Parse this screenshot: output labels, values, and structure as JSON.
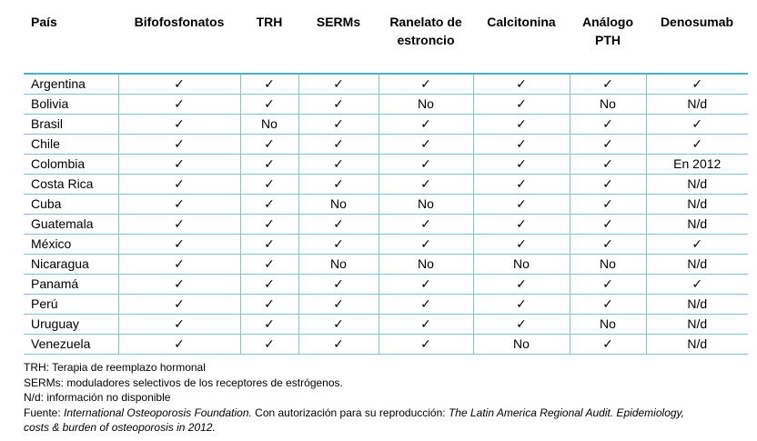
{
  "table": {
    "headers": [
      "País",
      "Bifofosfonatos",
      "TRH",
      "SERMs",
      "Ranelato de estroncio",
      "Calcitonina",
      "Análogo PTH",
      "Denosumab"
    ],
    "rows": [
      [
        "Argentina",
        "✓",
        "✓",
        "✓",
        "✓",
        "✓",
        "✓",
        "✓"
      ],
      [
        "Bolivia",
        "✓",
        "✓",
        "✓",
        "No",
        "✓",
        "No",
        "N/d"
      ],
      [
        "Brasil",
        "✓",
        "No",
        "✓",
        "✓",
        "✓",
        "✓",
        "✓"
      ],
      [
        "Chile",
        "✓",
        "✓",
        "✓",
        "✓",
        "✓",
        "✓",
        "✓"
      ],
      [
        "Colombia",
        "✓",
        "✓",
        "✓",
        "✓",
        "✓",
        "✓",
        "En 2012"
      ],
      [
        "Costa Rica",
        "✓",
        "✓",
        "✓",
        "✓",
        "✓",
        "✓",
        "N/d"
      ],
      [
        "Cuba",
        "✓",
        "✓",
        "No",
        "No",
        "✓",
        "✓",
        "N/d"
      ],
      [
        "Guatemala",
        "✓",
        "✓",
        "✓",
        "✓",
        "✓",
        "✓",
        "N/d"
      ],
      [
        "México",
        "✓",
        "✓",
        "✓",
        "✓",
        "✓",
        "✓",
        "✓"
      ],
      [
        "Nicaragua",
        "✓",
        "✓",
        "No",
        "No",
        "No",
        "No",
        "N/d"
      ],
      [
        "Panamá",
        "✓",
        "✓",
        "✓",
        "✓",
        "✓",
        "✓",
        "✓"
      ],
      [
        "Perú",
        "✓",
        "✓",
        "✓",
        "✓",
        "✓",
        "✓",
        "N/d"
      ],
      [
        "Uruguay",
        "✓",
        "✓",
        "✓",
        "✓",
        "✓",
        "No",
        "N/d"
      ],
      [
        "Venezuela",
        "✓",
        "✓",
        "✓",
        "✓",
        "No",
        "✓",
        "N/d"
      ]
    ]
  },
  "notes": {
    "trh": "TRH: Terapia de reemplazo hormonal",
    "serms": "SERMs: moduladores selectivos de los receptores de estrógenos.",
    "nd": "N/d: información no disponible",
    "source_prefix": "Fuente: ",
    "source_org": "International Osteoporosis Foundation.",
    "source_mid": " Con autorización para su reproducción: ",
    "source_title_1": "The Latin America Regional Audit. Epidemiology,",
    "source_title_2": "costs & burden of osteoporosis in 2012."
  },
  "colors": {
    "rule": "#4db0c4"
  }
}
